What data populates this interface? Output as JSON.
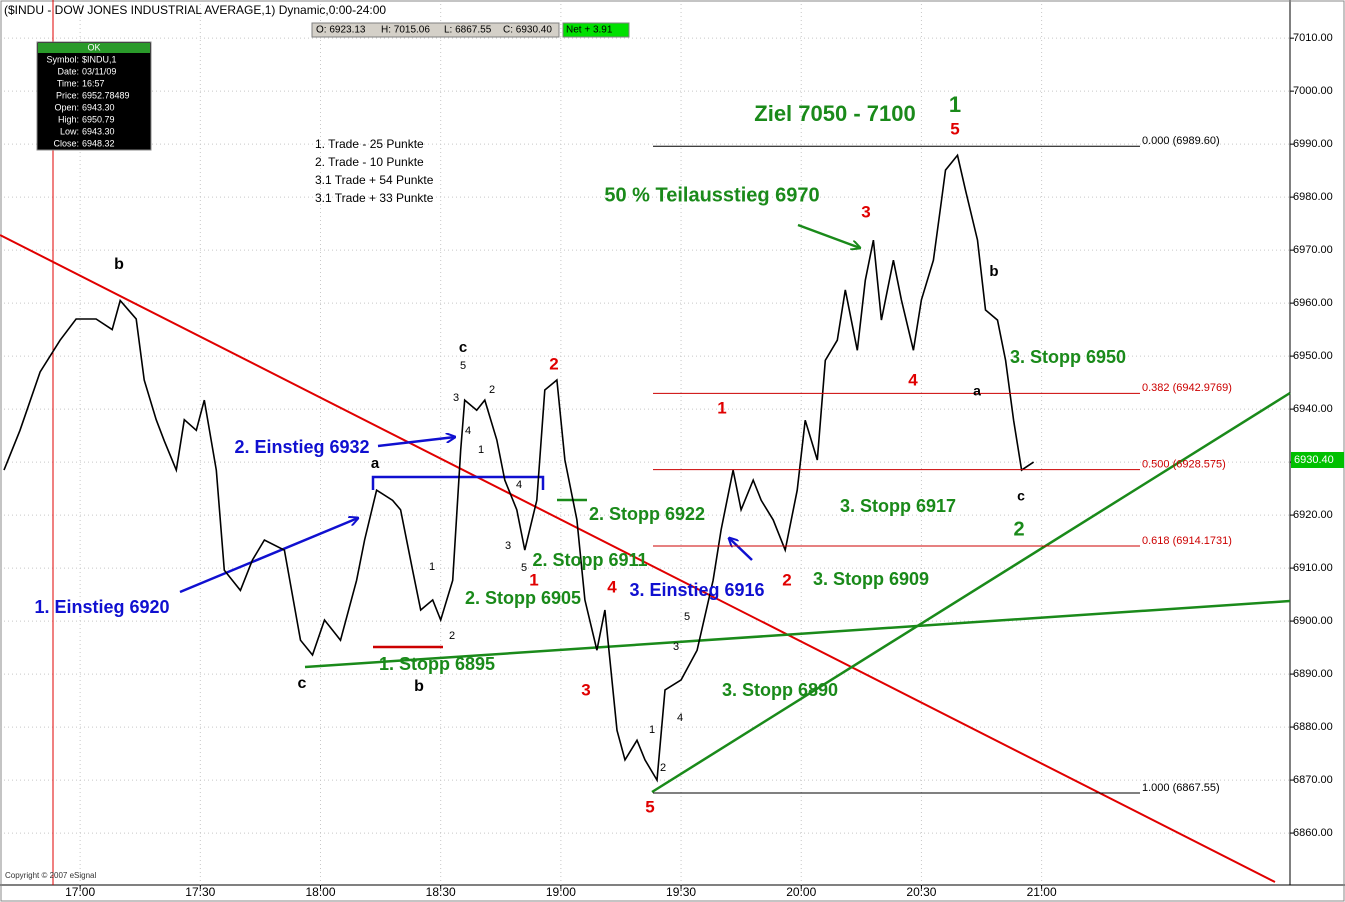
{
  "chart_data": {
    "type": "line",
    "title": "($INDU - DOW JONES INDUSTRIAL AVERAGE,1) Dynamic,0:00-24:00",
    "quote_box": [
      "O: 6923.13",
      "H: 7015.06",
      "L: 6867.55",
      "C: 6930.40"
    ],
    "net_box": "Net + 3.91",
    "info_panel": {
      "status": "OK",
      "rows": [
        {
          "label": "Symbol:",
          "value": "$INDU,1"
        },
        {
          "label": "Date:",
          "value": "03/11/09"
        },
        {
          "label": "Time:",
          "value": "16:57"
        },
        {
          "label": "Price:",
          "value": "6952.78489"
        },
        {
          "label": "Open:",
          "value": "6943.30"
        },
        {
          "label": "High:",
          "value": "6950.79"
        },
        {
          "label": "Low:",
          "value": "6943.30"
        },
        {
          "label": "Close:",
          "value": "6948.32"
        }
      ]
    },
    "trade_notes": [
      "1. Trade - 25 Punkte",
      "2. Trade - 10 Punkte",
      "3.1 Trade + 54 Punkte",
      "3.1 Trade + 33 Punkte"
    ],
    "copyright": "Copyright © 2007 eSignal",
    "color": "#000000",
    "x": [
      "16:41",
      "16:45",
      "16:50",
      "16:55",
      "16:59",
      "17:04",
      "17:08",
      "17:10",
      "17:14",
      "17:16",
      "17:19",
      "17:21",
      "17:24",
      "17:26",
      "17:29",
      "17:31",
      "17:34",
      "17:36",
      "17:40",
      "17:43",
      "17:46",
      "17:51",
      "17:55",
      "17:58",
      "18:01",
      "18:05",
      "18:09",
      "18:11",
      "18:14",
      "18:18",
      "18:20",
      "18:23",
      "18:25",
      "18:28",
      "18:30",
      "18:33",
      "18:35",
      "18:36",
      "18:39",
      "18:41",
      "18:44",
      "18:46",
      "18:49",
      "18:51",
      "18:54",
      "18:56",
      "18:59",
      "19:01",
      "19:04",
      "19:06",
      "19:09",
      "19:11",
      "19:14",
      "19:16",
      "19:19",
      "19:21",
      "19:24",
      "19:26",
      "19:30",
      "19:34",
      "19:38",
      "19:40",
      "19:43",
      "19:45",
      "19:48",
      "19:50",
      "19:53",
      "19:56",
      "19:59",
      "20:01",
      "20:04",
      "20:06",
      "20:09",
      "20:11",
      "20:14",
      "20:16",
      "20:18",
      "20:20",
      "20:23",
      "20:25",
      "20:28",
      "20:30",
      "20:33",
      "20:35",
      "20:36",
      "20:39",
      "20:41",
      "20:44",
      "20:46",
      "20:49",
      "20:51",
      "20:53",
      "20:55",
      "20:58"
    ],
    "values": [
      6928.5,
      6936,
      6947,
      6953,
      6957,
      6957,
      6955,
      6960.5,
      6957,
      6945.5,
      6938,
      6934,
      6928.5,
      6938,
      6936,
      6941.7,
      6928.5,
      6909.6,
      6905.8,
      6911.5,
      6915.3,
      6913.4,
      6896.4,
      6893.6,
      6900.2,
      6896.4,
      6907.7,
      6915.3,
      6924.7,
      6922.8,
      6921,
      6909.6,
      6902.1,
      6904,
      6900.2,
      6907.7,
      6932.3,
      6941.7,
      6939.8,
      6941.7,
      6934.2,
      6926.6,
      6921,
      6913.4,
      6922.8,
      6943.6,
      6945.5,
      6930.4,
      6919.1,
      6904,
      6894.5,
      6902.1,
      6879.4,
      6873.8,
      6877.5,
      6873.8,
      6870,
      6887,
      6888.9,
      6894.5,
      6907.7,
      6917.2,
      6928.5,
      6921,
      6926.6,
      6922.8,
      6919.1,
      6913.4,
      6924.7,
      6937.9,
      6930.4,
      6949.2,
      6953,
      6962.5,
      6951.1,
      6964.3,
      6971.9,
      6956.8,
      6968.1,
      6960.6,
      6951.1,
      6960.6,
      6968.1,
      6979.4,
      6985.1,
      6987.9,
      6981.3,
      6971.9,
      6958.7,
      6956.8,
      6949.2,
      6937.9,
      6928.5,
      6930
    ],
    "xlim": [
      "16:40",
      "22:02"
    ],
    "xticks": [
      "17:00",
      "17:30",
      "18:00",
      "18:30",
      "19:00",
      "19:30",
      "20:00",
      "20:30",
      "21:00"
    ],
    "ylim": [
      6850.2,
      7017.2
    ],
    "yticks": [
      {
        "value": 6860,
        "label": "6860.00"
      },
      {
        "value": 6870,
        "label": "6870.00"
      },
      {
        "value": 6880,
        "label": "6880.00"
      },
      {
        "value": 6890,
        "label": "6890.00"
      },
      {
        "value": 6900,
        "label": "6900.00"
      },
      {
        "value": 6910,
        "label": "6910.00"
      },
      {
        "value": 6920,
        "label": "6920.00"
      },
      {
        "value": 6930,
        "label": "6930.00"
      },
      {
        "value": 6940,
        "label": "6940.00"
      },
      {
        "value": 6950,
        "label": "6950.00"
      },
      {
        "value": 6960,
        "label": "6960.00"
      },
      {
        "value": 6970,
        "label": "6970.00"
      },
      {
        "value": 6980,
        "label": "6980.00"
      },
      {
        "value": 6990,
        "label": "6990.00"
      },
      {
        "value": 7000,
        "label": "7000.00"
      },
      {
        "value": 7010,
        "label": "7010.00"
      }
    ],
    "grid": true,
    "last_price": {
      "value": 6930.4,
      "label": "6930.40"
    },
    "fib_levels": [
      {
        "value": 6989.6,
        "label": "0.000 (6989.60)",
        "color": "#000000"
      },
      {
        "value": 6942.9769,
        "label": "0.382 (6942.9769)",
        "color": "#cc0000"
      },
      {
        "value": 6928.575,
        "label": "0.500 (6928.575)",
        "color": "#cc0000"
      },
      {
        "value": 6914.1731,
        "label": "0.618 (6914.1731)",
        "color": "#cc0000"
      },
      {
        "value": 6867.55,
        "label": "1.000 (6867.55)",
        "color": "#000000"
      }
    ],
    "annotations": [
      {
        "text": "Ziel 7050 - 7100",
        "color": "#1a8a1a"
      },
      {
        "text": "1",
        "color": "#1a8a1a"
      },
      {
        "text": "5",
        "color": "#e00000"
      },
      {
        "text": "50 % Teilausstieg 6970",
        "color": "#1a8a1a"
      },
      {
        "text": "3",
        "color": "#e00000"
      },
      {
        "text": "b",
        "color": "#000000"
      },
      {
        "text": "3. Stopp 6950",
        "color": "#1a8a1a"
      },
      {
        "text": "a",
        "color": "#000000"
      },
      {
        "text": "4",
        "color": "#e00000"
      },
      {
        "text": "1",
        "color": "#e00000"
      },
      {
        "text": "c",
        "color": "#000000"
      },
      {
        "text": "2",
        "color": "#1a8a1a"
      },
      {
        "text": "3. Stopp 6917",
        "color": "#1a8a1a"
      },
      {
        "text": "3. Stopp 6909",
        "color": "#1a8a1a"
      },
      {
        "text": "2",
        "color": "#e00000"
      },
      {
        "text": "3. Stopp 6890",
        "color": "#1a8a1a"
      },
      {
        "text": "3. Einstieg 6916",
        "color": "#1010d0"
      },
      {
        "text": "4",
        "color": "#e00000"
      },
      {
        "text": "3",
        "color": "#e00000"
      },
      {
        "text": "5",
        "color": "#e00000"
      },
      {
        "text": "2. Stopp 6922",
        "color": "#1a8a1a"
      },
      {
        "text": "2. Stopp 6911",
        "color": "#1a8a1a"
      },
      {
        "text": "1",
        "color": "#e00000"
      },
      {
        "text": "2",
        "color": "#e00000"
      },
      {
        "text": "c",
        "color": "#000000"
      },
      {
        "text": "5",
        "color": "#000000"
      },
      {
        "text": "3",
        "color": "#000000"
      },
      {
        "text": "2",
        "color": "#000000"
      },
      {
        "text": "4",
        "color": "#000000"
      },
      {
        "text": "1",
        "color": "#000000"
      },
      {
        "text": "4",
        "color": "#000000"
      },
      {
        "text": "3",
        "color": "#000000"
      },
      {
        "text": "5",
        "color": "#000000"
      },
      {
        "text": "2. Einstieg 6932",
        "color": "#1010d0"
      },
      {
        "text": "a",
        "color": "#000000"
      },
      {
        "text": "1",
        "color": "#000000"
      },
      {
        "text": "2",
        "color": "#000000"
      },
      {
        "text": "2. Stopp 6905",
        "color": "#1a8a1a"
      },
      {
        "text": "1. Stopp 6895",
        "color": "#1a8a1a"
      },
      {
        "text": "b",
        "color": "#000000"
      },
      {
        "text": "c",
        "color": "#000000"
      },
      {
        "text": "1. Einstieg 6920",
        "color": "#1010d0"
      },
      {
        "text": "b",
        "color": "#000000"
      },
      {
        "text": "5",
        "color": "#000000"
      },
      {
        "text": "3",
        "color": "#000000"
      },
      {
        "text": "4",
        "color": "#000000"
      },
      {
        "text": "1",
        "color": "#000000"
      },
      {
        "text": "2",
        "color": "#000000"
      }
    ]
  }
}
